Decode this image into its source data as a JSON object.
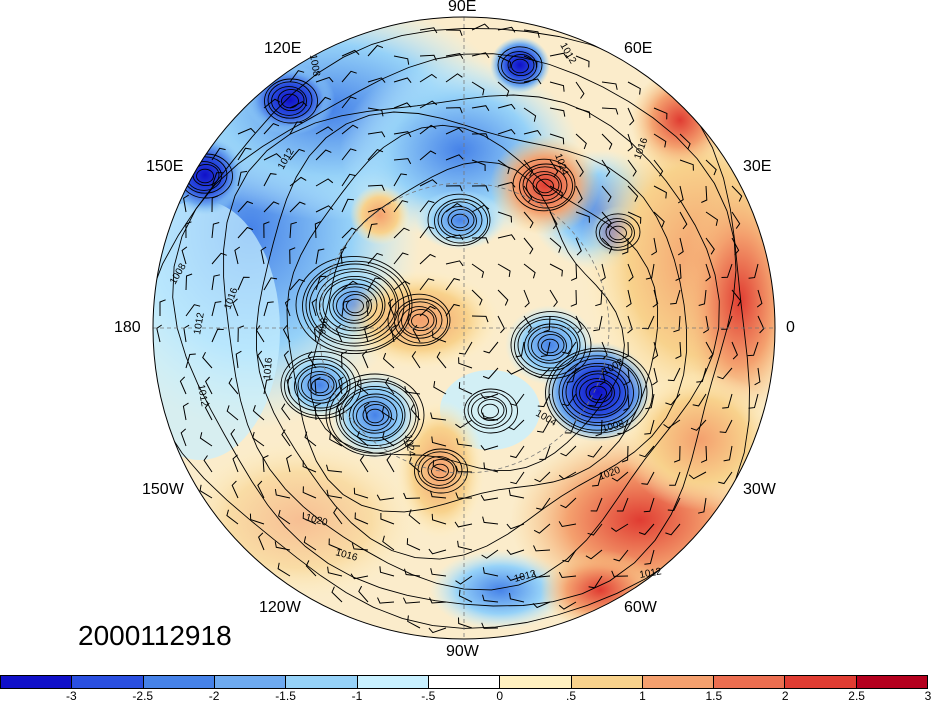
{
  "map": {
    "projection": "north-polar-stereographic",
    "longitude_labels": {
      "n90e": "90E",
      "n120e": "120E",
      "n60e": "60E",
      "n150e": "150E",
      "n30e": "30E",
      "n180": "180",
      "n0": "0",
      "n150w": "150W",
      "n30w": "30W",
      "n120w": "120W",
      "n60w": "60W",
      "n90w": "90W"
    },
    "contour_labels": [
      "1008",
      "1012",
      "1012",
      "1024",
      "1016",
      "1008",
      "1016",
      "1012",
      "1012",
      "996",
      "1016",
      "1024",
      "1004",
      "1008",
      "1020",
      "1008",
      "1020",
      "1016",
      "1012",
      "1012"
    ],
    "timestamp": "2000112918"
  },
  "colorbar": {
    "colors": [
      "#1010c8",
      "#2a4fe0",
      "#4682e8",
      "#6eaaf0",
      "#96d2f8",
      "#c8f0ff",
      "#ffffff",
      "#fff0c0",
      "#f8d28c",
      "#f4a06e",
      "#ec6e50",
      "#e03c32",
      "#b4001e"
    ],
    "tick_labels": [
      "-3",
      "-2.5",
      "-2",
      "-1.5",
      "-1",
      "-.5",
      "0",
      ".5",
      "1",
      "1.5",
      "2",
      "2.5",
      "3"
    ]
  }
}
